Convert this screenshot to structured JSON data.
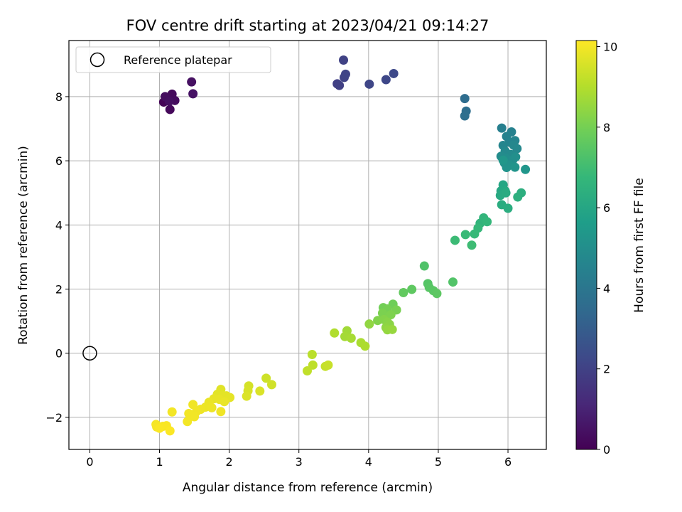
{
  "chart_data": {
    "type": "scatter",
    "title": "FOV centre drift starting at 2023/04/21 09:14:27",
    "xlabel": "Angular distance from reference (arcmin)",
    "ylabel": "Rotation from reference (arcmin)",
    "xlim": [
      -0.3,
      6.55
    ],
    "ylim": [
      -3.0,
      9.75
    ],
    "xticks": [
      0,
      1,
      2,
      3,
      4,
      5,
      6
    ],
    "yticks": [
      -2,
      0,
      2,
      4,
      6,
      8
    ],
    "grid": true,
    "legend": {
      "position": "top-left",
      "entries": [
        "Reference platepar"
      ]
    },
    "reference_point": {
      "x": 0,
      "y": 0,
      "label": "Reference platepar"
    },
    "colorbar": {
      "label": "Hours from first FF file",
      "range": [
        0,
        10.15
      ],
      "ticks": [
        0,
        2,
        4,
        6,
        8,
        10
      ],
      "colormap": "viridis",
      "colors": [
        "#440154",
        "#482878",
        "#3e4989",
        "#31688e",
        "#26828e",
        "#1f9e89",
        "#35b779",
        "#6ece58",
        "#b5de2b",
        "#fde725"
      ]
    },
    "points": [
      {
        "x": 1.06,
        "y": 7.83,
        "h": 0.05
      },
      {
        "x": 1.09,
        "y": 7.98,
        "h": 0.1
      },
      {
        "x": 1.12,
        "y": 7.93,
        "h": 0.15
      },
      {
        "x": 1.15,
        "y": 7.6,
        "h": 0.2
      },
      {
        "x": 1.18,
        "y": 8.08,
        "h": 0.25
      },
      {
        "x": 1.22,
        "y": 7.88,
        "h": 0.3
      },
      {
        "x": 1.08,
        "y": 8.0,
        "h": 0.35
      },
      {
        "x": 1.14,
        "y": 7.86,
        "h": 0.4
      },
      {
        "x": 1.46,
        "y": 8.46,
        "h": 0.45
      },
      {
        "x": 1.48,
        "y": 8.09,
        "h": 0.5
      },
      {
        "x": 3.55,
        "y": 8.4,
        "h": 1.9
      },
      {
        "x": 3.58,
        "y": 8.35,
        "h": 1.95
      },
      {
        "x": 3.64,
        "y": 9.14,
        "h": 2.0
      },
      {
        "x": 3.65,
        "y": 8.6,
        "h": 2.05
      },
      {
        "x": 3.67,
        "y": 8.7,
        "h": 2.1
      },
      {
        "x": 4.01,
        "y": 8.39,
        "h": 2.15
      },
      {
        "x": 4.25,
        "y": 8.53,
        "h": 2.2
      },
      {
        "x": 4.36,
        "y": 8.72,
        "h": 2.25
      },
      {
        "x": 5.38,
        "y": 7.94,
        "h": 3.6
      },
      {
        "x": 5.4,
        "y": 7.55,
        "h": 3.65
      },
      {
        "x": 5.38,
        "y": 7.4,
        "h": 3.7
      },
      {
        "x": 5.91,
        "y": 7.02,
        "h": 4.4
      },
      {
        "x": 6.05,
        "y": 6.9,
        "h": 4.45
      },
      {
        "x": 5.98,
        "y": 6.76,
        "h": 4.5
      },
      {
        "x": 6.02,
        "y": 6.58,
        "h": 4.55
      },
      {
        "x": 6.1,
        "y": 6.63,
        "h": 4.6
      },
      {
        "x": 5.93,
        "y": 6.48,
        "h": 4.65
      },
      {
        "x": 6.08,
        "y": 6.49,
        "h": 4.7
      },
      {
        "x": 6.13,
        "y": 6.38,
        "h": 4.75
      },
      {
        "x": 5.96,
        "y": 6.3,
        "h": 4.8
      },
      {
        "x": 6.04,
        "y": 6.2,
        "h": 4.85
      },
      {
        "x": 5.9,
        "y": 6.14,
        "h": 4.9
      },
      {
        "x": 5.97,
        "y": 6.08,
        "h": 4.95
      },
      {
        "x": 6.07,
        "y": 6.03,
        "h": 5.0
      },
      {
        "x": 6.11,
        "y": 6.12,
        "h": 5.05
      },
      {
        "x": 5.95,
        "y": 5.93,
        "h": 5.1
      },
      {
        "x": 6.02,
        "y": 5.86,
        "h": 5.15
      },
      {
        "x": 5.98,
        "y": 5.79,
        "h": 5.2
      },
      {
        "x": 6.1,
        "y": 5.8,
        "h": 5.25
      },
      {
        "x": 6.25,
        "y": 5.73,
        "h": 5.3
      },
      {
        "x": 5.93,
        "y": 6.02,
        "h": 5.35
      },
      {
        "x": 5.93,
        "y": 5.25,
        "h": 6.0
      },
      {
        "x": 5.9,
        "y": 5.06,
        "h": 6.05
      },
      {
        "x": 5.96,
        "y": 5.06,
        "h": 6.1
      },
      {
        "x": 5.89,
        "y": 4.92,
        "h": 6.15
      },
      {
        "x": 5.97,
        "y": 5.0,
        "h": 6.2
      },
      {
        "x": 5.91,
        "y": 4.63,
        "h": 6.25
      },
      {
        "x": 6.0,
        "y": 4.52,
        "h": 6.3
      },
      {
        "x": 6.19,
        "y": 5.0,
        "h": 6.35
      },
      {
        "x": 6.14,
        "y": 4.87,
        "h": 6.4
      },
      {
        "x": 5.6,
        "y": 4.05,
        "h": 6.6
      },
      {
        "x": 5.65,
        "y": 4.22,
        "h": 6.65
      },
      {
        "x": 5.7,
        "y": 4.1,
        "h": 6.7
      },
      {
        "x": 5.57,
        "y": 3.9,
        "h": 6.75
      },
      {
        "x": 5.52,
        "y": 3.72,
        "h": 6.8
      },
      {
        "x": 5.39,
        "y": 3.7,
        "h": 6.85
      },
      {
        "x": 5.24,
        "y": 3.52,
        "h": 6.9
      },
      {
        "x": 5.48,
        "y": 3.37,
        "h": 6.95
      },
      {
        "x": 4.8,
        "y": 2.72,
        "h": 7.3
      },
      {
        "x": 5.21,
        "y": 2.22,
        "h": 7.35
      },
      {
        "x": 4.85,
        "y": 2.17,
        "h": 7.4
      },
      {
        "x": 4.87,
        "y": 2.05,
        "h": 7.45
      },
      {
        "x": 4.93,
        "y": 1.95,
        "h": 7.5
      },
      {
        "x": 4.98,
        "y": 1.86,
        "h": 7.55
      },
      {
        "x": 4.62,
        "y": 1.99,
        "h": 7.6
      },
      {
        "x": 4.5,
        "y": 1.89,
        "h": 7.65
      },
      {
        "x": 4.35,
        "y": 1.53,
        "h": 7.9
      },
      {
        "x": 4.21,
        "y": 1.42,
        "h": 7.95
      },
      {
        "x": 4.27,
        "y": 1.38,
        "h": 8.0
      },
      {
        "x": 4.4,
        "y": 1.35,
        "h": 8.05
      },
      {
        "x": 4.2,
        "y": 1.25,
        "h": 8.1
      },
      {
        "x": 4.32,
        "y": 1.2,
        "h": 8.15
      },
      {
        "x": 4.13,
        "y": 1.02,
        "h": 8.2
      },
      {
        "x": 4.22,
        "y": 1.05,
        "h": 8.25
      },
      {
        "x": 4.27,
        "y": 0.97,
        "h": 8.3
      },
      {
        "x": 4.3,
        "y": 0.9,
        "h": 8.35
      },
      {
        "x": 4.25,
        "y": 0.8,
        "h": 8.4
      },
      {
        "x": 4.01,
        "y": 0.91,
        "h": 8.45
      },
      {
        "x": 4.27,
        "y": 0.73,
        "h": 8.5
      },
      {
        "x": 4.34,
        "y": 0.74,
        "h": 8.55
      },
      {
        "x": 3.69,
        "y": 0.7,
        "h": 8.7
      },
      {
        "x": 3.66,
        "y": 0.52,
        "h": 8.75
      },
      {
        "x": 3.75,
        "y": 0.47,
        "h": 8.8
      },
      {
        "x": 3.89,
        "y": 0.33,
        "h": 8.85
      },
      {
        "x": 3.95,
        "y": 0.22,
        "h": 8.9
      },
      {
        "x": 3.51,
        "y": 0.63,
        "h": 8.95
      },
      {
        "x": 3.19,
        "y": -0.04,
        "h": 9.1
      },
      {
        "x": 3.2,
        "y": -0.37,
        "h": 9.15
      },
      {
        "x": 3.12,
        "y": -0.55,
        "h": 9.2
      },
      {
        "x": 3.38,
        "y": -0.41,
        "h": 9.25
      },
      {
        "x": 3.42,
        "y": -0.37,
        "h": 9.3
      },
      {
        "x": 2.53,
        "y": -0.78,
        "h": 9.4
      },
      {
        "x": 2.61,
        "y": -0.98,
        "h": 9.45
      },
      {
        "x": 2.28,
        "y": -1.02,
        "h": 9.5
      },
      {
        "x": 2.27,
        "y": -1.17,
        "h": 9.55
      },
      {
        "x": 2.44,
        "y": -1.18,
        "h": 9.6
      },
      {
        "x": 2.25,
        "y": -1.34,
        "h": 9.62
      },
      {
        "x": 1.88,
        "y": -1.13,
        "h": 9.7
      },
      {
        "x": 1.83,
        "y": -1.28,
        "h": 9.72
      },
      {
        "x": 1.9,
        "y": -1.33,
        "h": 9.74
      },
      {
        "x": 1.96,
        "y": -1.33,
        "h": 9.76
      },
      {
        "x": 2.01,
        "y": -1.38,
        "h": 9.78
      },
      {
        "x": 1.78,
        "y": -1.42,
        "h": 9.8
      },
      {
        "x": 1.86,
        "y": -1.44,
        "h": 9.82
      },
      {
        "x": 1.93,
        "y": -1.51,
        "h": 9.84
      },
      {
        "x": 1.71,
        "y": -1.53,
        "h": 9.86
      },
      {
        "x": 1.66,
        "y": -1.68,
        "h": 9.88
      },
      {
        "x": 1.75,
        "y": -1.7,
        "h": 9.9
      },
      {
        "x": 1.59,
        "y": -1.75,
        "h": 9.92
      },
      {
        "x": 1.88,
        "y": -1.82,
        "h": 9.94
      },
      {
        "x": 1.48,
        "y": -1.6,
        "h": 9.95
      },
      {
        "x": 1.53,
        "y": -1.82,
        "h": 9.96
      },
      {
        "x": 1.42,
        "y": -1.88,
        "h": 9.97
      },
      {
        "x": 1.5,
        "y": -1.98,
        "h": 9.98
      },
      {
        "x": 1.18,
        "y": -1.83,
        "h": 9.99
      },
      {
        "x": 1.4,
        "y": -2.13,
        "h": 10.0
      },
      {
        "x": 0.95,
        "y": -2.22,
        "h": 10.02
      },
      {
        "x": 0.96,
        "y": -2.3,
        "h": 10.04
      },
      {
        "x": 1.05,
        "y": -2.28,
        "h": 10.06
      },
      {
        "x": 1.1,
        "y": -2.26,
        "h": 10.08
      },
      {
        "x": 1.0,
        "y": -2.34,
        "h": 10.1
      },
      {
        "x": 1.15,
        "y": -2.42,
        "h": 10.12
      }
    ]
  }
}
